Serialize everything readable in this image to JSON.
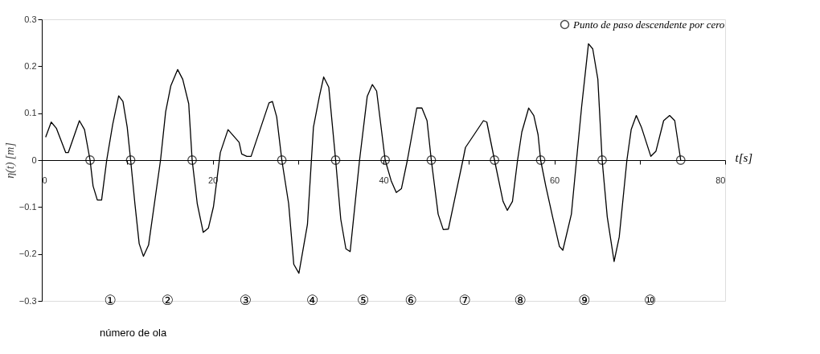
{
  "chart_data": {
    "type": "line",
    "xlabel": "t[s]",
    "ylabel": "η(t) [m]",
    "xlim": [
      0,
      80
    ],
    "ylim": [
      -0.3,
      0.3
    ],
    "xticks": [
      0,
      {
        "value": 10,
        "label": null
      },
      20,
      {
        "value": 30,
        "label": null
      },
      40,
      {
        "value": 50,
        "label": null
      },
      60,
      {
        "value": 70,
        "label": null
      },
      80
    ],
    "yticks": [
      -0.3,
      -0.2,
      -0.1,
      0,
      0.1,
      0.2,
      0.3
    ],
    "grid": false,
    "legend": "top right",
    "series": [
      {
        "color": "#000000",
        "marker": "none",
        "line_style": "solid",
        "x": [
          0.45,
          1.1,
          1.7,
          2.8,
          3.1,
          4.4,
          5.0,
          5.65,
          6.0,
          6.5,
          7.0,
          7.6,
          8.3,
          9.0,
          9.5,
          10.0,
          10.4,
          10.9,
          11.4,
          11.9,
          12.5,
          13.9,
          14.5,
          15.1,
          15.9,
          16.5,
          17.2,
          17.6,
          18.2,
          18.9,
          19.5,
          20.1,
          20.9,
          21.8,
          23.1,
          23.4,
          24.0,
          24.5,
          26.6,
          27.0,
          27.5,
          28.1,
          28.9,
          29.5,
          30.1,
          31.1,
          31.8,
          32.5,
          33.0,
          33.6,
          34.4,
          35.0,
          35.6,
          36.1,
          37.2,
          38.1,
          38.7,
          39.2,
          40.2,
          40.9,
          41.5,
          42.1,
          42.8,
          43.9,
          44.5,
          45.1,
          45.6,
          46.4,
          47.0,
          47.6,
          49.3,
          49.6,
          50.6,
          51.7,
          52.1,
          53.0,
          54.0,
          54.5,
          55.1,
          55.7,
          56.2,
          57.0,
          57.6,
          58.1,
          58.4,
          59.0,
          59.8,
          60.6,
          61.0,
          62.0,
          62.6,
          63.2,
          64.0,
          64.5,
          65.1,
          65.6,
          66.2,
          67.0,
          67.6,
          68.5,
          69.0,
          69.6,
          70.2,
          71.3,
          71.9,
          72.8,
          73.5,
          74.1,
          74.8
        ],
        "values": [
          0.049,
          0.081,
          0.068,
          0.016,
          0.016,
          0.084,
          0.065,
          0,
          -0.055,
          -0.085,
          -0.085,
          0,
          0.076,
          0.137,
          0.125,
          0.07,
          0,
          -0.093,
          -0.178,
          -0.205,
          -0.181,
          0,
          0.103,
          0.158,
          0.193,
          0.172,
          0.12,
          0,
          -0.093,
          -0.154,
          -0.145,
          -0.099,
          0.016,
          0.065,
          0.038,
          0.013,
          0.008,
          0.008,
          0.122,
          0.125,
          0.092,
          0,
          -0.093,
          -0.222,
          -0.241,
          -0.137,
          0.07,
          0.136,
          0.177,
          0.155,
          0,
          -0.126,
          -0.189,
          -0.195,
          0,
          0.136,
          0.161,
          0.147,
          0,
          -0.044,
          -0.069,
          -0.061,
          0,
          0.111,
          0.111,
          0.084,
          0,
          -0.115,
          -0.148,
          -0.147,
          0,
          0.027,
          0.054,
          0.084,
          0.081,
          0,
          -0.088,
          -0.107,
          -0.088,
          0,
          0.06,
          0.111,
          0.095,
          0.054,
          0,
          -0.055,
          -0.121,
          -0.184,
          -0.192,
          -0.115,
          0,
          0.114,
          0.248,
          0.237,
          0.172,
          0,
          -0.121,
          -0.216,
          -0.164,
          0,
          0.065,
          0.095,
          0.07,
          0.008,
          0.019,
          0.084,
          0.095,
          0.084,
          0
        ]
      },
      {
        "type": "scatter",
        "name": "Punto de paso descendente por cero",
        "color": "#000000",
        "marker": "circle",
        "x": [
          5.65,
          10.4,
          17.6,
          28.1,
          34.4,
          40.2,
          45.6,
          53.0,
          58.4,
          65.6,
          74.8
        ],
        "values": [
          0,
          0,
          0,
          0,
          0,
          0,
          0,
          0,
          0,
          0,
          0
        ]
      }
    ],
    "annotations": [
      "①",
      "②",
      "③",
      "④",
      "⑤",
      "⑥",
      "⑦",
      "⑧",
      "⑨",
      "⑩",
      "número de ola"
    ]
  }
}
